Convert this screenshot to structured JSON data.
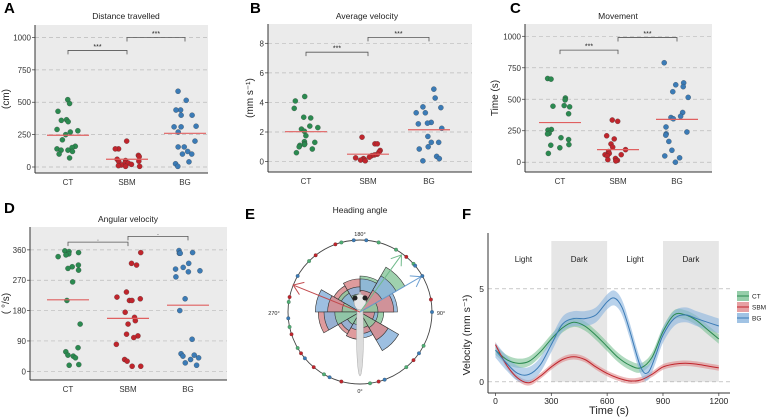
{
  "colors": {
    "CT": "#2b8a50",
    "SBM": "#c0252c",
    "BG": "#3b7bb6",
    "mean": "#e06060",
    "panel_bg": "#ebebeb"
  },
  "chart_data": [
    {
      "id": "A",
      "panel_label": "A",
      "type": "scatter",
      "title": "Distance travelled",
      "xlabel": "",
      "ylabel": "(cm)",
      "ylim": [
        0,
        1050
      ],
      "yticks": [
        0,
        250,
        500,
        750,
        1000
      ],
      "categories": [
        "CT",
        "SBM",
        "BG"
      ],
      "series": [
        {
          "name": "CT",
          "values": [
            520,
            490,
            430,
            360,
            365,
            350,
            290,
            280,
            270,
            250,
            210,
            160,
            150,
            140,
            130,
            130,
            120,
            100,
            70
          ],
          "mean": 245
        },
        {
          "name": "SBM",
          "values": [
            200,
            140,
            140,
            90,
            80,
            60,
            50,
            45,
            40,
            30,
            30,
            20,
            15,
            10,
            5,
            5
          ],
          "mean": 60
        },
        {
          "name": "BG",
          "values": [
            585,
            515,
            440,
            440,
            400,
            400,
            310,
            310,
            315,
            270,
            200,
            155,
            155,
            120,
            100,
            100,
            40,
            25,
            5
          ],
          "mean": 260
        }
      ],
      "significance": [
        {
          "pair": [
            "CT",
            "SBM"
          ],
          "label": "***",
          "level": 900
        },
        {
          "pair": [
            "SBM",
            "BG"
          ],
          "label": "***",
          "level": 1000
        }
      ]
    },
    {
      "id": "B",
      "panel_label": "B",
      "type": "scatter",
      "title": "Average velocity",
      "xlabel": "",
      "ylabel": "(mm s⁻¹)",
      "ylim": [
        -0.3,
        8.9
      ],
      "yticks": [
        0,
        2,
        4,
        6,
        8
      ],
      "categories": [
        "CT",
        "SBM",
        "BG"
      ],
      "series": [
        {
          "name": "CT",
          "values": [
            4.4,
            4.1,
            3.6,
            3.0,
            2.95,
            2.4,
            2.3,
            2.2,
            2.05,
            1.75,
            1.35,
            1.3,
            1.2,
            1.15,
            1.1,
            1.0,
            0.85,
            0.6
          ],
          "mean": 2.02
        },
        {
          "name": "SBM",
          "values": [
            1.65,
            1.2,
            1.2,
            0.75,
            0.65,
            0.5,
            0.45,
            0.4,
            0.3,
            0.25,
            0.2,
            0.15,
            0.1,
            0.05
          ],
          "mean": 0.5
        },
        {
          "name": "BG",
          "values": [
            4.9,
            4.3,
            3.7,
            3.65,
            3.3,
            3.3,
            2.65,
            2.6,
            2.55,
            2.25,
            1.7,
            1.3,
            1.3,
            1.0,
            0.85,
            0.35,
            0.2,
            0.05
          ],
          "mean": 2.15
        }
      ],
      "significance": [
        {
          "pair": [
            "CT",
            "SBM"
          ],
          "label": "***",
          "level": 7.4
        },
        {
          "pair": [
            "SBM",
            "BG"
          ],
          "label": "***",
          "level": 8.4
        }
      ]
    },
    {
      "id": "C",
      "panel_label": "C",
      "type": "scatter",
      "title": "Movement",
      "xlabel": "",
      "ylabel": "Time (s)",
      "ylim": [
        -30,
        1050
      ],
      "yticks": [
        0,
        250,
        500,
        750,
        1000
      ],
      "categories": [
        "CT",
        "SBM",
        "BG"
      ],
      "series": [
        {
          "name": "CT",
          "values": [
            665,
            660,
            510,
            495,
            450,
            440,
            445,
            385,
            260,
            255,
            230,
            225,
            195,
            180,
            140,
            135,
            115,
            70
          ],
          "mean": 315
        },
        {
          "name": "SBM",
          "values": [
            335,
            325,
            210,
            185,
            145,
            120,
            100,
            85,
            70,
            60,
            60,
            50,
            30,
            20,
            15,
            10
          ],
          "mean": 100
        },
        {
          "name": "BG",
          "values": [
            790,
            630,
            615,
            600,
            560,
            515,
            395,
            365,
            355,
            345,
            280,
            240,
            225,
            215,
            165,
            95,
            50,
            35,
            0
          ],
          "mean": 340
        }
      ],
      "significance": [
        {
          "pair": [
            "CT",
            "SBM"
          ],
          "label": "***",
          "level": 890
        },
        {
          "pair": [
            "SBM",
            "BG"
          ],
          "label": "***",
          "level": 990
        }
      ]
    },
    {
      "id": "D",
      "panel_label": "D",
      "type": "scatter",
      "title": "Angular velocity",
      "xlabel": "",
      "ylabel": "( °/s)",
      "ylim": [
        -8,
        410
      ],
      "yticks": [
        0,
        90,
        180,
        270,
        360
      ],
      "categories": [
        "CT",
        "SBM",
        "BG"
      ],
      "series": [
        {
          "name": "CT",
          "values": [
            357,
            355,
            352,
            348,
            345,
            340,
            315,
            310,
            305,
            300,
            265,
            210,
            140,
            70,
            58,
            48,
            45,
            40,
            20,
            18
          ],
          "mean": 212
        },
        {
          "name": "SBM",
          "values": [
            352,
            320,
            315,
            235,
            220,
            215,
            210,
            210,
            175,
            160,
            150,
            140,
            110,
            105,
            100,
            80,
            35,
            30,
            15,
            15
          ],
          "mean": 157
        },
        {
          "name": "BG",
          "values": [
            358,
            352,
            350,
            350,
            320,
            308,
            303,
            298,
            295,
            280,
            215,
            180,
            95,
            52,
            48,
            45,
            40,
            35,
            25,
            18
          ],
          "mean": 196
        }
      ],
      "significance": [
        {
          "pair": [
            "CT",
            "SBM"
          ],
          "label": ".",
          "level": 383
        },
        {
          "pair": [
            "SBM",
            "BG"
          ],
          "label": ".",
          "level": 400
        }
      ]
    },
    {
      "id": "E",
      "panel_label": "E",
      "type": "rose",
      "title": "Heading angle",
      "angle_labels": [
        "0°",
        "90°",
        "180°",
        "270°"
      ],
      "bins": [
        {
          "from": 0,
          "to": 30,
          "CT": 0.22,
          "SBM": 0.3,
          "BG": 0.36
        },
        {
          "from": 30,
          "to": 60,
          "CT": 0.25,
          "SBM": 0.45,
          "BG": 0.62
        },
        {
          "from": 60,
          "to": 90,
          "CT": 0.33,
          "SBM": 0.2,
          "BG": 0.25
        },
        {
          "from": 90,
          "to": 120,
          "CT": 0.25,
          "SBM": 0.47,
          "BG": 0.52
        },
        {
          "from": 120,
          "to": 150,
          "CT": 0.72,
          "SBM": 0.35,
          "BG": 0.58
        },
        {
          "from": 150,
          "to": 180,
          "CT": 0.5,
          "SBM": 0.3,
          "BG": 0.46
        },
        {
          "from": 180,
          "to": 210,
          "CT": 0.25,
          "SBM": 0.46,
          "BG": 0.35
        },
        {
          "from": 210,
          "to": 240,
          "CT": 0.35,
          "SBM": 0.42,
          "BG": 0.3
        },
        {
          "from": 240,
          "to": 270,
          "CT": 0.25,
          "SBM": 0.45,
          "BG": 0.62
        },
        {
          "from": 270,
          "to": 300,
          "CT": 0.35,
          "SBM": 0.58,
          "BG": 0.5
        },
        {
          "from": 300,
          "to": 330,
          "CT": 0.2,
          "SBM": 0.35,
          "BG": 0.3
        },
        {
          "from": 330,
          "to": 360,
          "CT": 0.18,
          "SBM": 0.38,
          "BG": 0.25
        }
      ],
      "mean_vectors": [
        {
          "name": "SBM",
          "angle": 248,
          "length": 1.0
        },
        {
          "name": "CT",
          "angle": 144,
          "length": 0.98
        },
        {
          "name": "BG",
          "angle": 120,
          "length": 0.98
        }
      ],
      "points": {
        "CT": [
          8,
          40,
          62,
          132,
          150,
          165,
          195,
          225,
          262,
          282,
          300,
          330
        ],
        "SBM": [
          15,
          48,
          100,
          140,
          200,
          218,
          258,
          288,
          305,
          320,
          345
        ],
        "BG": [
          20,
          55,
          90,
          120,
          130,
          175,
          185,
          240,
          275,
          310,
          335
        ]
      }
    },
    {
      "id": "F",
      "panel_label": "F",
      "type": "line",
      "title": "",
      "xlabel": "Time (s)",
      "ylabel": "Velocity (mm s⁻¹)",
      "xlim": [
        -40,
        1260
      ],
      "ylim": [
        -0.6,
        8
      ],
      "xticks": [
        0,
        300,
        600,
        900,
        1200
      ],
      "yticks": [
        0,
        5
      ],
      "phases": [
        {
          "label": "Light",
          "from": 0,
          "to": 300,
          "dark": false
        },
        {
          "label": "Dark",
          "from": 300,
          "to": 600,
          "dark": true
        },
        {
          "label": "Light",
          "from": 600,
          "to": 900,
          "dark": false
        },
        {
          "label": "Dark",
          "from": 900,
          "to": 1200,
          "dark": true
        }
      ],
      "legend": [
        "CT",
        "SBM",
        "BG"
      ],
      "legend_position": "right",
      "series": [
        {
          "name": "CT",
          "ci": 0.25,
          "x": [
            0,
            60,
            120,
            180,
            240,
            300,
            360,
            420,
            480,
            540,
            600,
            660,
            720,
            780,
            840,
            900,
            960,
            1020,
            1080,
            1140,
            1200
          ],
          "y": [
            1.7,
            1.2,
            1.0,
            1.1,
            1.6,
            2.3,
            2.9,
            3.2,
            3.0,
            2.5,
            1.9,
            1.3,
            0.9,
            0.75,
            1.3,
            2.7,
            3.6,
            3.6,
            3.3,
            2.8,
            2.3
          ]
        },
        {
          "name": "SBM",
          "ci": 0.15,
          "x": [
            0,
            60,
            120,
            180,
            240,
            300,
            360,
            420,
            480,
            540,
            600,
            660,
            720,
            780,
            840,
            900,
            960,
            1020,
            1080,
            1140,
            1200
          ],
          "y": [
            2.0,
            0.9,
            0.2,
            -0.05,
            0.3,
            0.8,
            1.2,
            1.35,
            1.2,
            0.8,
            0.45,
            0.2,
            0.05,
            0.1,
            0.4,
            0.8,
            0.95,
            1.0,
            0.95,
            0.85,
            0.75
          ]
        },
        {
          "name": "BG",
          "ci": 0.4,
          "x": [
            0,
            60,
            120,
            180,
            240,
            300,
            360,
            420,
            480,
            540,
            600,
            640,
            680,
            720,
            780,
            820,
            860,
            900,
            960,
            1020,
            1080,
            1140,
            1200
          ],
          "y": [
            1.7,
            1.0,
            0.45,
            0.4,
            0.9,
            2.0,
            3.1,
            3.4,
            3.4,
            3.6,
            4.3,
            4.5,
            4.0,
            2.8,
            0.8,
            0.5,
            1.4,
            2.5,
            3.4,
            3.6,
            3.4,
            3.2,
            3.0
          ]
        }
      ]
    }
  ]
}
